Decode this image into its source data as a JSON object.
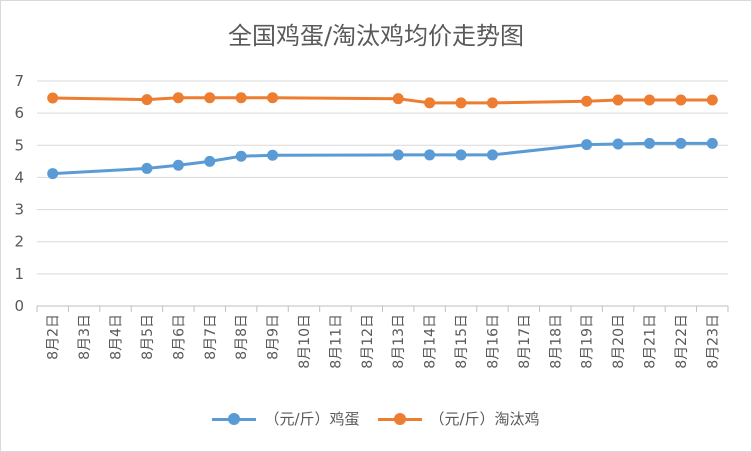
{
  "chart_data": {
    "type": "line",
    "title": "全国鸡蛋/淘汰鸡均价走势图",
    "categories": [
      "8月2日",
      "8月3日",
      "8月4日",
      "8月5日",
      "8月6日",
      "8月7日",
      "8月8日",
      "8月9日",
      "8月10日",
      "8月11日",
      "8月12日",
      "8月13日",
      "8月14日",
      "8月15日",
      "8月16日",
      "8月17日",
      "8月18日",
      "8月19日",
      "8月20日",
      "8月21日",
      "8月22日",
      "8月23日"
    ],
    "ylim": [
      0,
      7
    ],
    "yticks": [
      "0",
      "1",
      "2",
      "3",
      "4",
      "5",
      "6",
      "7"
    ],
    "grid": true,
    "legend_position": "bottom",
    "series": [
      {
        "name": "（元/斤）鸡蛋",
        "color": "#5b9bd5",
        "values": [
          4.12,
          null,
          null,
          4.28,
          4.38,
          4.5,
          4.66,
          4.69,
          null,
          null,
          null,
          4.7,
          4.7,
          4.7,
          4.7,
          null,
          null,
          5.02,
          5.04,
          5.06,
          5.06,
          5.06
        ]
      },
      {
        "name": "（元/斤）淘汰鸡",
        "color": "#ed7d31",
        "values": [
          6.47,
          null,
          null,
          6.42,
          6.48,
          6.48,
          6.48,
          6.48,
          null,
          null,
          null,
          6.45,
          6.32,
          6.32,
          6.32,
          null,
          null,
          6.37,
          6.41,
          6.41,
          6.41,
          6.41
        ]
      }
    ]
  }
}
